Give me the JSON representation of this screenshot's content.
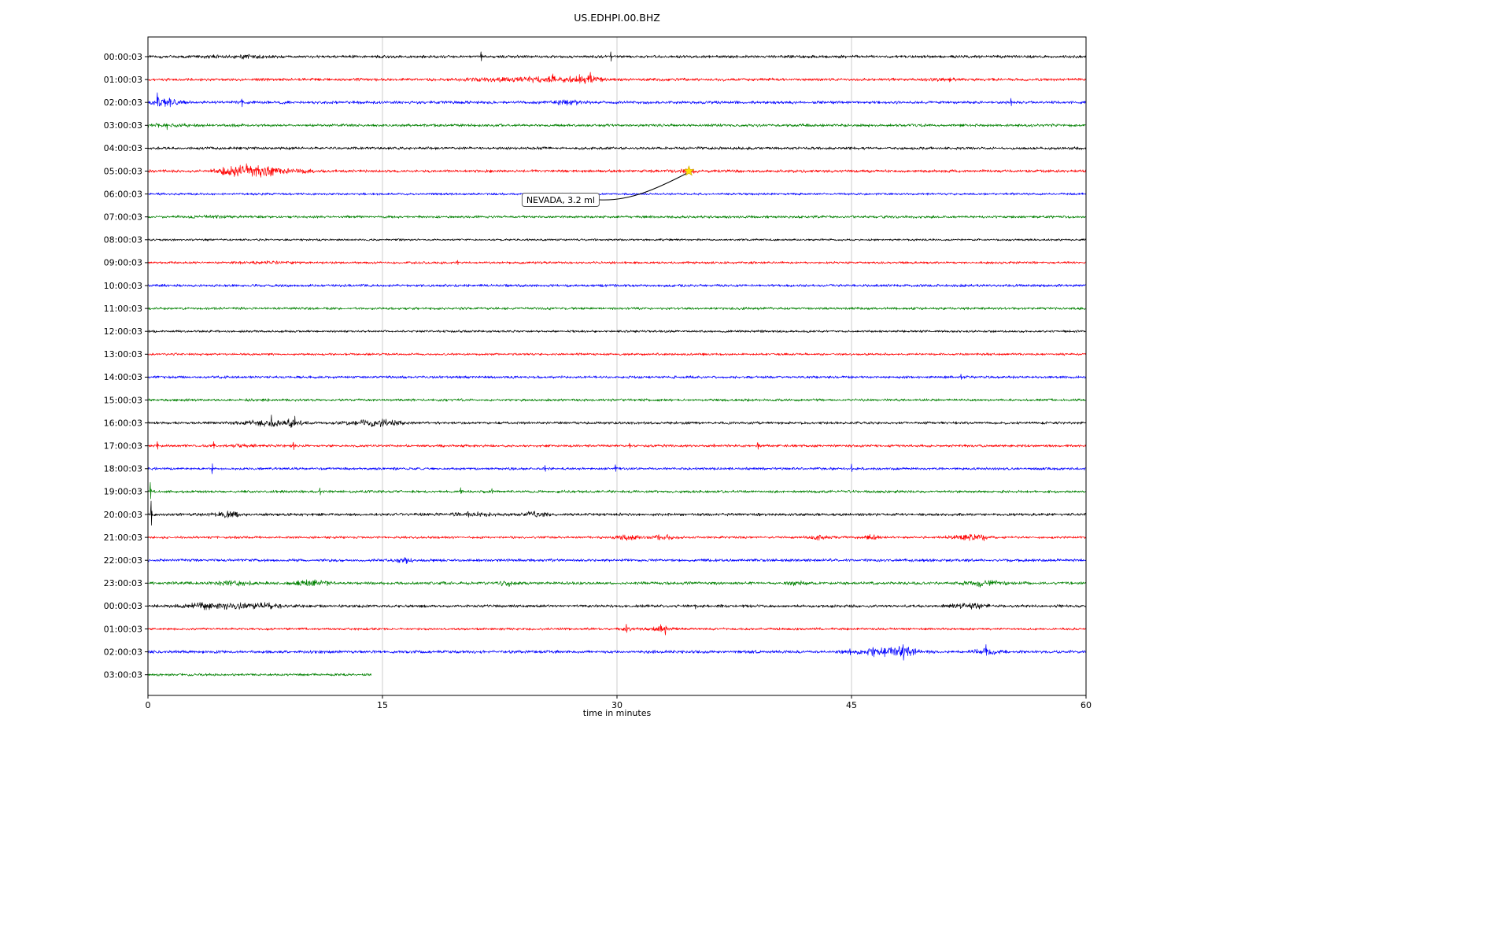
{
  "chart_data": {
    "type": "line",
    "subtype": "helicorder-dayplot",
    "title": "US.EDHPI.00.BHZ",
    "xlabel": "time in minutes",
    "x_range": [
      0,
      60
    ],
    "x_ticks": [
      0,
      15,
      30,
      45,
      60
    ],
    "grid_minutes": [
      15,
      30,
      45
    ],
    "grid_on": true,
    "grid_color": "#c9c9c9",
    "axis_color": "#000000",
    "background_color": "#ffffff",
    "annotation": {
      "text": "NEVADA, 3.2 ml",
      "row": 5,
      "minute": 34.6,
      "marker": "star",
      "marker_color": "#ffe000"
    },
    "rows": [
      {
        "label": "00:00:03",
        "color": "#000000",
        "base": 2.1,
        "events": [
          [
            3.5,
            2.5,
            0.6
          ],
          [
            6.5,
            0.6,
            1.2
          ]
        ],
        "spikes": [
          [
            21.3,
            6
          ],
          [
            29.6,
            8
          ]
        ]
      },
      {
        "label": "01:00:03",
        "color": "#ff0000",
        "base": 2.1,
        "events": [
          [
            23.5,
            2.0,
            1.8
          ],
          [
            26.3,
            1.2,
            2.6
          ],
          [
            28.2,
            0.5,
            3.5
          ],
          [
            51,
            0.7,
            1.6
          ]
        ],
        "spikes": [
          [
            25.9,
            5
          ],
          [
            27.6,
            5
          ],
          [
            28.3,
            7
          ]
        ]
      },
      {
        "label": "02:00:03",
        "color": "#0000ff",
        "base": 2.2,
        "events": [
          [
            0.9,
            0.8,
            3.5
          ],
          [
            26.8,
            0.7,
            2.2
          ]
        ],
        "spikes": [
          [
            0.6,
            9
          ],
          [
            1.4,
            7
          ],
          [
            6.0,
            6
          ],
          [
            55.2,
            5
          ]
        ]
      },
      {
        "label": "03:00:03",
        "color": "#008000",
        "base": 2.1,
        "events": [
          [
            0.8,
            1.2,
            1.6
          ]
        ],
        "spikes": [
          [
            1.2,
            3
          ]
        ]
      },
      {
        "label": "04:00:03",
        "color": "#000000",
        "base": 2.0
      },
      {
        "label": "05:00:03",
        "color": "#ff0000",
        "base": 2.1,
        "events": [
          [
            5.3,
            0.6,
            4.5
          ],
          [
            6.6,
            0.9,
            5.5
          ],
          [
            7.8,
            0.6,
            2.8
          ],
          [
            9.2,
            0.9,
            1.8
          ],
          [
            34.6,
            0.4,
            2.2
          ]
        ],
        "spikes": [
          [
            6.3,
            6
          ],
          [
            6.9,
            5
          ]
        ]
      },
      {
        "label": "06:00:03",
        "color": "#0000ff",
        "base": 1.7
      },
      {
        "label": "07:00:03",
        "color": "#008000",
        "base": 1.9,
        "events": [
          [
            4.5,
            1.2,
            1.0
          ]
        ]
      },
      {
        "label": "08:00:03",
        "color": "#000000",
        "base": 1.5
      },
      {
        "label": "09:00:03",
        "color": "#ff0000",
        "base": 1.7,
        "events": [
          [
            7.5,
            1.0,
            1.2
          ]
        ],
        "spikes": [
          [
            19.8,
            3
          ]
        ]
      },
      {
        "label": "10:00:03",
        "color": "#0000ff",
        "base": 2.0
      },
      {
        "label": "11:00:03",
        "color": "#008000",
        "base": 1.9
      },
      {
        "label": "12:00:03",
        "color": "#000000",
        "base": 1.7
      },
      {
        "label": "13:00:03",
        "color": "#ff0000",
        "base": 1.7
      },
      {
        "label": "14:00:03",
        "color": "#0000ff",
        "base": 1.9,
        "spikes": [
          [
            52,
            3.5
          ]
        ]
      },
      {
        "label": "15:00:03",
        "color": "#008000",
        "base": 1.9
      },
      {
        "label": "16:00:03",
        "color": "#000000",
        "base": 1.9,
        "events": [
          [
            7.6,
            1.0,
            4.0
          ],
          [
            9.3,
            0.4,
            4.0
          ],
          [
            13.7,
            0.9,
            2.6
          ],
          [
            15.3,
            0.7,
            3.0
          ]
        ],
        "spikes": [
          [
            7.9,
            6
          ],
          [
            9.4,
            8
          ],
          [
            15.0,
            5
          ]
        ]
      },
      {
        "label": "17:00:03",
        "color": "#ff0000",
        "base": 1.9,
        "events": [
          [
            6.0,
            0.5,
            1.8
          ]
        ],
        "spikes": [
          [
            0.6,
            5
          ],
          [
            4.2,
            4.5
          ],
          [
            9.3,
            6
          ],
          [
            30.8,
            4.5
          ],
          [
            36.2,
            3.5
          ],
          [
            39.0,
            5
          ]
        ]
      },
      {
        "label": "18:00:03",
        "color": "#0000ff",
        "base": 1.9,
        "spikes": [
          [
            4.1,
            -6
          ],
          [
            25.4,
            4
          ],
          [
            29.9,
            5
          ],
          [
            45.0,
            5.5
          ]
        ]
      },
      {
        "label": "19:00:03",
        "color": "#008000",
        "base": 1.9,
        "spikes": [
          [
            0.15,
            11
          ],
          [
            11.0,
            4.5
          ],
          [
            20.0,
            3.5
          ],
          [
            22.0,
            3.5
          ]
        ]
      },
      {
        "label": "20:00:03",
        "color": "#000000",
        "base": 2.1,
        "events": [
          [
            5.0,
            0.6,
            3.5
          ],
          [
            20.5,
            1.0,
            2.0
          ],
          [
            24.8,
            0.5,
            3.0
          ]
        ],
        "spikes": [
          [
            0.2,
            16
          ],
          [
            5.1,
            5
          ],
          [
            25.0,
            6
          ]
        ]
      },
      {
        "label": "21:00:03",
        "color": "#ff0000",
        "base": 1.8,
        "events": [
          [
            30.7,
            0.5,
            2.6
          ],
          [
            33.0,
            0.5,
            2.6
          ],
          [
            42.8,
            0.5,
            2.2
          ],
          [
            46.2,
            0.4,
            2.2
          ],
          [
            52.3,
            0.8,
            3.0
          ],
          [
            53.3,
            0.4,
            2.5
          ]
        ]
      },
      {
        "label": "22:00:03",
        "color": "#0000ff",
        "base": 2.1,
        "events": [
          [
            16.4,
            0.4,
            2.5
          ]
        ],
        "spikes": [
          [
            16.5,
            5
          ]
        ]
      },
      {
        "label": "23:00:03",
        "color": "#008000",
        "base": 2.1,
        "events": [
          [
            5.5,
            0.9,
            2.6
          ],
          [
            10.5,
            0.8,
            3.0
          ],
          [
            23.0,
            0.4,
            2.6
          ],
          [
            41.5,
            0.4,
            2.0
          ],
          [
            53.5,
            0.9,
            3.5
          ]
        ]
      },
      {
        "label": "00:00:03",
        "color": "#000000",
        "base": 2.1,
        "events": [
          [
            3.2,
            0.5,
            2.6
          ],
          [
            5.0,
            1.5,
            2.6
          ],
          [
            7.5,
            0.8,
            2.2
          ],
          [
            52.5,
            0.8,
            3.0
          ]
        ],
        "spikes": [
          [
            35.0,
            3.5
          ]
        ]
      },
      {
        "label": "01:00:03",
        "color": "#ff0000",
        "base": 1.8,
        "events": [
          [
            30.6,
            0.4,
            2.0
          ],
          [
            32.8,
            0.5,
            2.2
          ]
        ],
        "spikes": [
          [
            30.6,
            5
          ],
          [
            32.8,
            6
          ],
          [
            33.1,
            -5
          ]
        ]
      },
      {
        "label": "02:00:03",
        "color": "#0000ff",
        "base": 2.3,
        "events": [
          [
            47.0,
            1.0,
            4.0
          ],
          [
            48.5,
            0.6,
            4.5
          ],
          [
            53.6,
            0.5,
            3.5
          ]
        ],
        "spikes": [
          [
            44.9,
            4
          ],
          [
            46.4,
            7
          ],
          [
            48.3,
            8
          ],
          [
            53.6,
            6
          ]
        ]
      },
      {
        "label": "03:00:03",
        "color": "#008000",
        "base": 1.9,
        "end": 14.3
      }
    ]
  }
}
